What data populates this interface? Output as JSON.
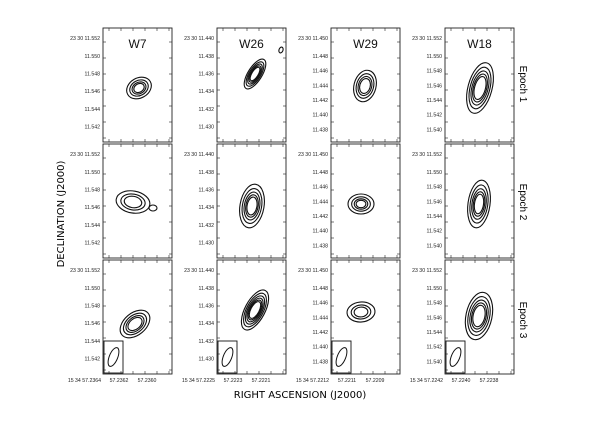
{
  "figure": {
    "ylabel": "DECLINATION (J2000)",
    "xlabel": "RIGHT ASCENSION (J2000)",
    "epochs": [
      "Epoch 1",
      "Epoch 2",
      "Epoch 3"
    ]
  },
  "columns": [
    {
      "name": "W7",
      "dec_prefix": "23 30 11.552",
      "dec_ticks": [
        "11.550",
        "11.548",
        "11.546",
        "11.544",
        "11.542"
      ],
      "ra_prefix": "15 34 57.2364",
      "ra_ticks": [
        "57.2362",
        "57.2360"
      ]
    },
    {
      "name": "W26",
      "dec_prefix": "23 30 11.440",
      "dec_ticks": [
        "11.438",
        "11.436",
        "11.434",
        "11.432",
        "11.430"
      ],
      "ra_prefix": "15 34 57.2225",
      "ra_ticks": [
        "57.2223",
        "57.2221"
      ]
    },
    {
      "name": "W29",
      "dec_prefix": "23 30 11.450",
      "dec_ticks": [
        "11.448",
        "11.446",
        "11.444",
        "11.442",
        "11.440",
        "11.438"
      ],
      "ra_prefix": "15 34 57.2212",
      "ra_ticks": [
        "57.2211",
        "57.2209"
      ]
    },
    {
      "name": "W18",
      "dec_prefix": "23 30 11.552",
      "dec_ticks": [
        "11.550",
        "11.548",
        "11.546",
        "11.544",
        "11.542",
        "11.540"
      ],
      "ra_prefix": "15 34 57.2242",
      "ra_ticks": [
        "57.2240",
        "57.2238"
      ]
    }
  ]
}
